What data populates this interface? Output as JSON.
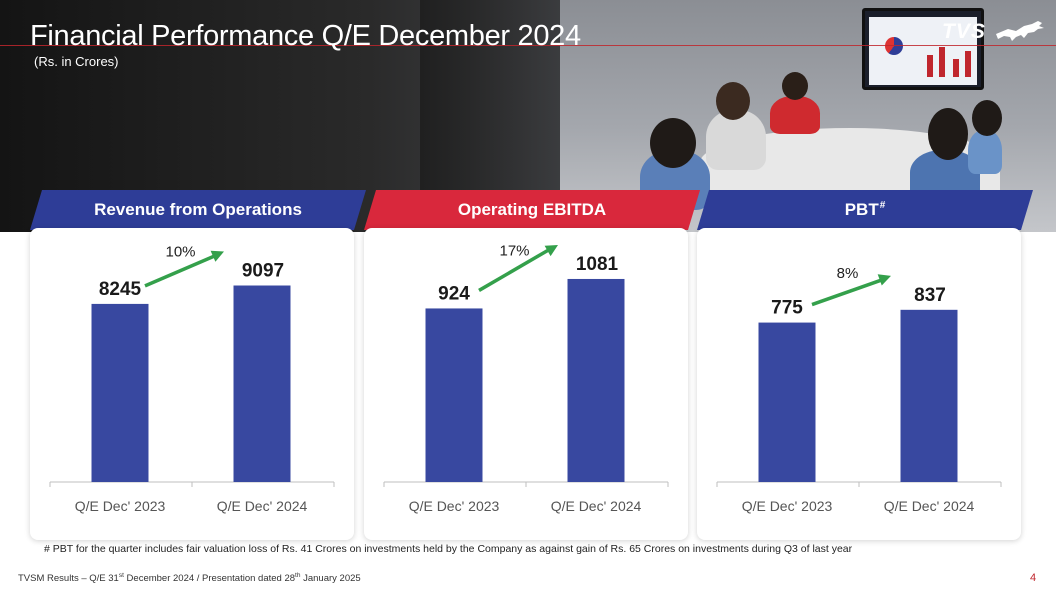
{
  "header": {
    "title": "Financial Performance Q/E December 2024",
    "subtitle": "(Rs. in Crores)",
    "logo_text": "TVS",
    "logo_icon": "horse-icon"
  },
  "colors": {
    "bar": "#3848a0",
    "arrow": "#34a04b",
    "panel_blue": "#2e3d97",
    "panel_red": "#d9283c",
    "accent_red": "#c0262d"
  },
  "chart_data": [
    {
      "type": "bar",
      "title": "Revenue from Operations",
      "categories": [
        "Q/E Dec' 2023",
        "Q/E Dec' 2024"
      ],
      "values": [
        8245,
        9097
      ],
      "value_labels": [
        "8245",
        "9097"
      ],
      "growth_label": "10%",
      "header_color": "#2e3d97",
      "ylim": [
        0,
        10000
      ]
    },
    {
      "type": "bar",
      "title": "Operating EBITDA",
      "categories": [
        "Q/E Dec' 2023",
        "Q/E Dec' 2024"
      ],
      "values": [
        924,
        1081
      ],
      "value_labels": [
        "924",
        "1081"
      ],
      "growth_label": "17%",
      "header_color": "#d9283c",
      "ylim": [
        0,
        1150
      ]
    },
    {
      "type": "bar",
      "title": "PBT",
      "title_sup": "#",
      "categories": [
        "Q/E Dec' 2023",
        "Q/E Dec' 2024"
      ],
      "values": [
        775,
        837
      ],
      "value_labels": [
        "775",
        "837"
      ],
      "growth_label": "8%",
      "header_color": "#2e3d97",
      "ylim": [
        0,
        1050
      ]
    }
  ],
  "footnote": "# PBT for the quarter includes fair valuation loss of Rs. 41 Crores on investments held by the Company as against gain of Rs. 65 Crores on investments during Q3 of last year",
  "footer": {
    "part1": "TVSM Results – Q/E 31",
    "sup1": "st",
    "part2": " December 2024 / Presentation dated 28",
    "sup2": "th",
    "part3": " January 2025"
  },
  "page_number": "4"
}
